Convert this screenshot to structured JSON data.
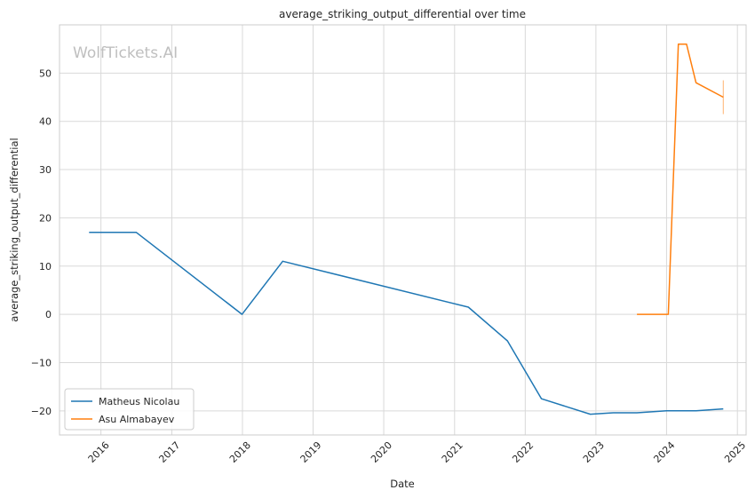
{
  "watermark": "WolfTickets.AI",
  "chart_data": {
    "type": "line",
    "title": "average_striking_output_differential over time",
    "xlabel": "Date",
    "ylabel": "average_striking_output_differential",
    "x_ticks": [
      "2016",
      "2017",
      "2018",
      "2019",
      "2020",
      "2021",
      "2022",
      "2023",
      "2024",
      "2025"
    ],
    "y_ticks": [
      -20,
      -10,
      0,
      10,
      20,
      30,
      40,
      50
    ],
    "xlim": [
      "2015-06-01",
      "2025-02-15"
    ],
    "ylim": [
      -25,
      60
    ],
    "grid": true,
    "legend_position": "lower-left",
    "series": [
      {
        "name": "Matheus Nicolau",
        "color": "#1f77b4",
        "points": [
          {
            "x": "2015-11-01",
            "y": 17
          },
          {
            "x": "2016-07-01",
            "y": 17
          },
          {
            "x": "2017-12-30",
            "y": 0
          },
          {
            "x": "2018-07-28",
            "y": 11
          },
          {
            "x": "2021-03-13",
            "y": 1.5
          },
          {
            "x": "2021-10-01",
            "y": -5.5
          },
          {
            "x": "2022-03-26",
            "y": -17.5
          },
          {
            "x": "2022-12-03",
            "y": -20.7
          },
          {
            "x": "2023-04-01",
            "y": -20.4
          },
          {
            "x": "2023-08-01",
            "y": -20.4
          },
          {
            "x": "2024-01-01",
            "y": -20
          },
          {
            "x": "2024-06-01",
            "y": -20
          },
          {
            "x": "2024-10-20",
            "y": -19.6
          }
        ]
      },
      {
        "name": "Asu Almabayev",
        "color": "#ff7f0e",
        "points": [
          {
            "x": "2023-08-01",
            "y": 0
          },
          {
            "x": "2024-01-10",
            "y": 0
          },
          {
            "x": "2024-03-02",
            "y": 56
          },
          {
            "x": "2024-04-13",
            "y": 56
          },
          {
            "x": "2024-06-01",
            "y": 48
          },
          {
            "x": "2024-10-20",
            "y": 45
          }
        ]
      }
    ]
  }
}
